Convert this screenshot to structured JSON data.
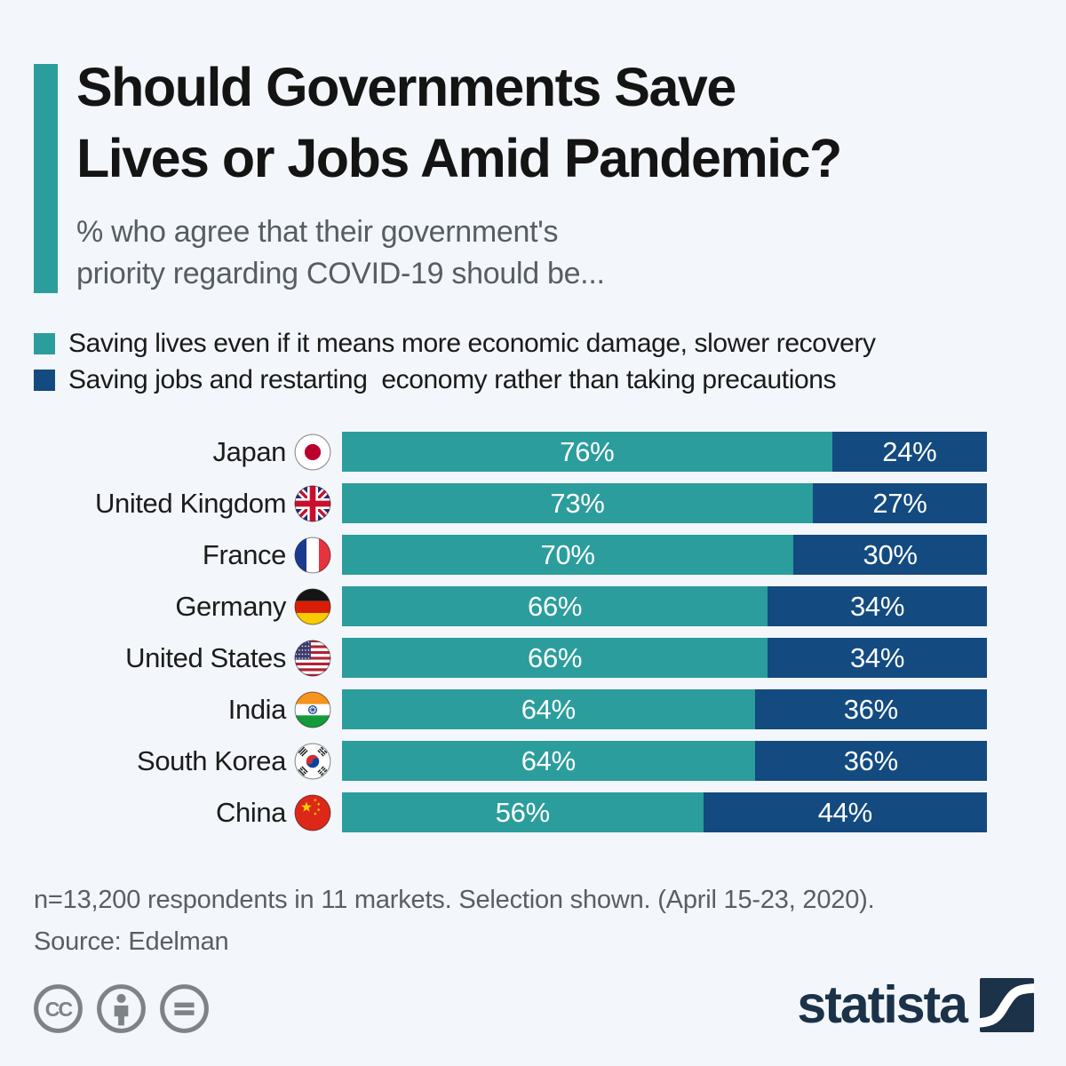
{
  "page": {
    "background": "#f3f6fa"
  },
  "colors": {
    "teal": "#2b9d9c",
    "navy": "#134a80",
    "title_text": "#141414",
    "subtitle_text": "#565d63",
    "footer_text": "#595e62",
    "icon_gray": "#7e8387",
    "brand_navy": "#1b3249"
  },
  "header": {
    "title_lines": [
      "Should Governments Save",
      "Lives or Jobs Amid Pandemic?"
    ],
    "subtitle_lines": [
      "% who agree that their government's",
      "priority regarding COVID-19 should be..."
    ]
  },
  "legend": {
    "items": [
      {
        "label": "Saving lives even if it means more economic damage, slower recovery",
        "color": "#2b9d9c"
      },
      {
        "label": "Saving jobs and restarting  economy rather than taking precautions",
        "color": "#134a80"
      }
    ]
  },
  "chart_data": {
    "type": "bar",
    "orientation": "horizontal",
    "stacked": true,
    "unit": "%",
    "xlim": [
      0,
      100
    ],
    "value_labels": true,
    "categories": [
      "Japan",
      "United Kingdom",
      "France",
      "Germany",
      "United States",
      "India",
      "South Korea",
      "China"
    ],
    "flag_icons": [
      "japan-flag-icon",
      "uk-flag-icon",
      "france-flag-icon",
      "germany-flag-icon",
      "us-flag-icon",
      "india-flag-icon",
      "south-korea-flag-icon",
      "china-flag-icon"
    ],
    "series": [
      {
        "name": "Saving lives even if it means more economic damage, slower recovery",
        "color": "#2b9d9c",
        "values": [
          76,
          73,
          70,
          66,
          66,
          64,
          64,
          56
        ]
      },
      {
        "name": "Saving jobs and restarting economy rather than taking precautions",
        "color": "#134a80",
        "values": [
          24,
          27,
          30,
          34,
          34,
          36,
          36,
          44
        ]
      }
    ]
  },
  "footer": {
    "note": "n=13,200 respondents in 11 markets. Selection shown. (April 15-23, 2020).",
    "source": "Source: Edelman"
  },
  "branding": {
    "cc_icons": [
      "cc-icon",
      "cc-by-icon",
      "cc-nd-icon"
    ],
    "logo_text": "statista"
  }
}
